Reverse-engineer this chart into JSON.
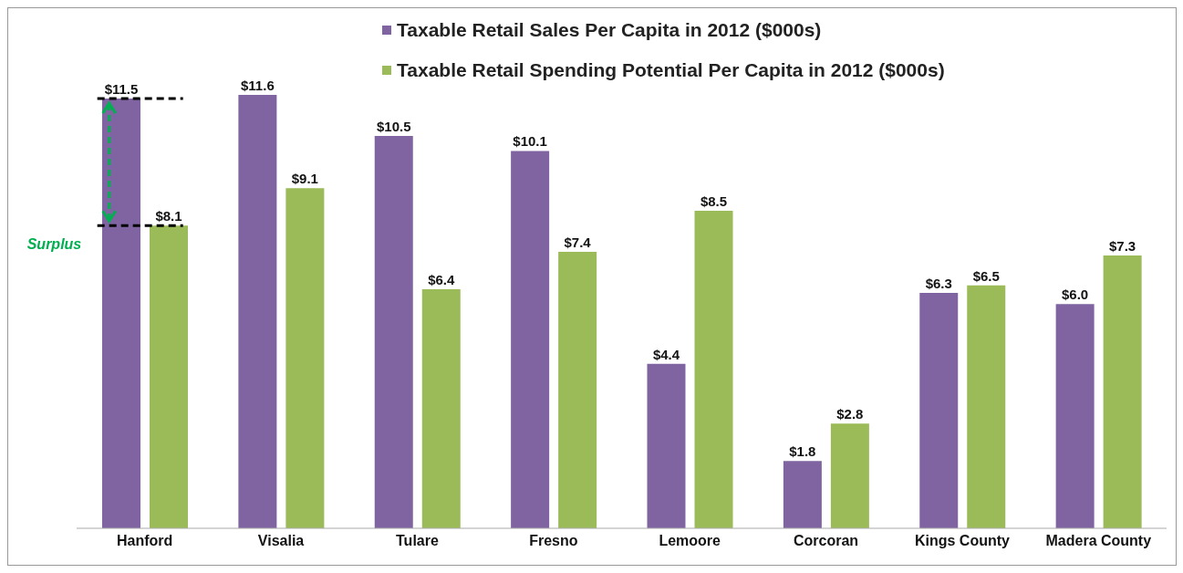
{
  "chart_data": {
    "type": "bar",
    "categories": [
      "Hanford",
      "Visalia",
      "Tulare",
      "Fresno",
      "Lemoore",
      "Corcoran",
      "Kings County",
      "Madera County"
    ],
    "series": [
      {
        "name": "Taxable Retail Sales Per Capita in 2012 ($000s)",
        "color": "#8064a2",
        "values": [
          11.5,
          11.6,
          10.5,
          10.1,
          4.4,
          1.8,
          6.3,
          6.0
        ],
        "value_labels": [
          "$11.5",
          "$11.6",
          "$10.5",
          "$10.1",
          "$4.4",
          "$1.8",
          "$6.3",
          "$6.0"
        ]
      },
      {
        "name": "Taxable Retail Spending Potential Per Capita in 2012 ($000s)",
        "color": "#9bbb59",
        "values": [
          8.1,
          9.1,
          6.4,
          7.4,
          8.5,
          2.8,
          6.5,
          7.3
        ],
        "value_labels": [
          "$8.1",
          "$9.1",
          "$6.4",
          "$7.4",
          "$8.5",
          "$2.8",
          "$6.5",
          "$7.3"
        ]
      }
    ],
    "annotations": [
      "Surplus"
    ],
    "legend": "top",
    "grid": false
  }
}
